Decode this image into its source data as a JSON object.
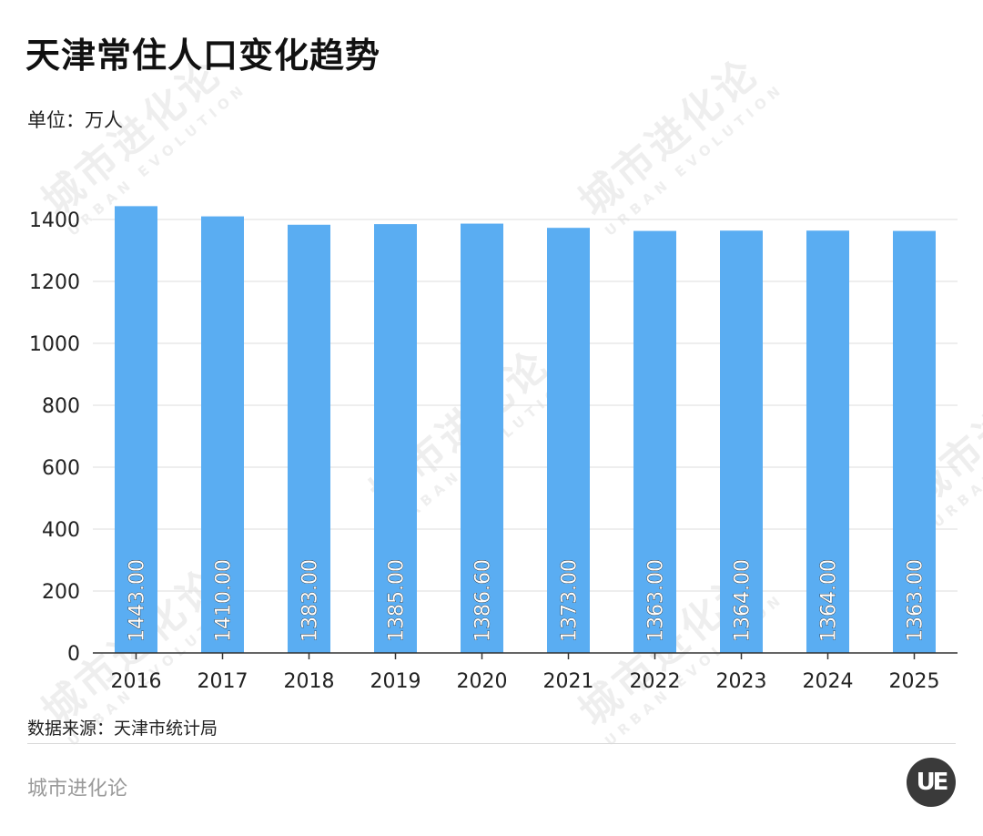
{
  "title": "天津常住人口变化趋势",
  "unit": "单位：万人",
  "source": "数据来源：天津市统计局",
  "brand": "城市进化论",
  "logo_text": "UE",
  "watermark": {
    "cn": "城市进化论",
    "en": "URBAN EVOLUTION"
  },
  "colors": {
    "bar": "#5aadf2",
    "grid": "#dddddd",
    "axis": "#333333"
  },
  "chart_data": {
    "type": "bar",
    "title": "天津常住人口变化趋势",
    "ylabel": "单位：万人",
    "xlabel": "",
    "categories": [
      "2016",
      "2017",
      "2018",
      "2019",
      "2020",
      "2021",
      "2022",
      "2023",
      "2024",
      "2025"
    ],
    "values": [
      1443.0,
      1410.0,
      1383.0,
      1385.0,
      1386.6,
      1373.0,
      1363.0,
      1364.0,
      1364.0,
      1363.0
    ],
    "value_labels": [
      "1443.00",
      "1410.00",
      "1383.00",
      "1385.00",
      "1386.60",
      "1373.00",
      "1363.00",
      "1364.00",
      "1364.00",
      "1363.00"
    ],
    "yticks": [
      0,
      200,
      400,
      600,
      800,
      1000,
      1200,
      1400
    ],
    "ylim": [
      0,
      1400
    ],
    "grid": true,
    "legend": "none"
  }
}
